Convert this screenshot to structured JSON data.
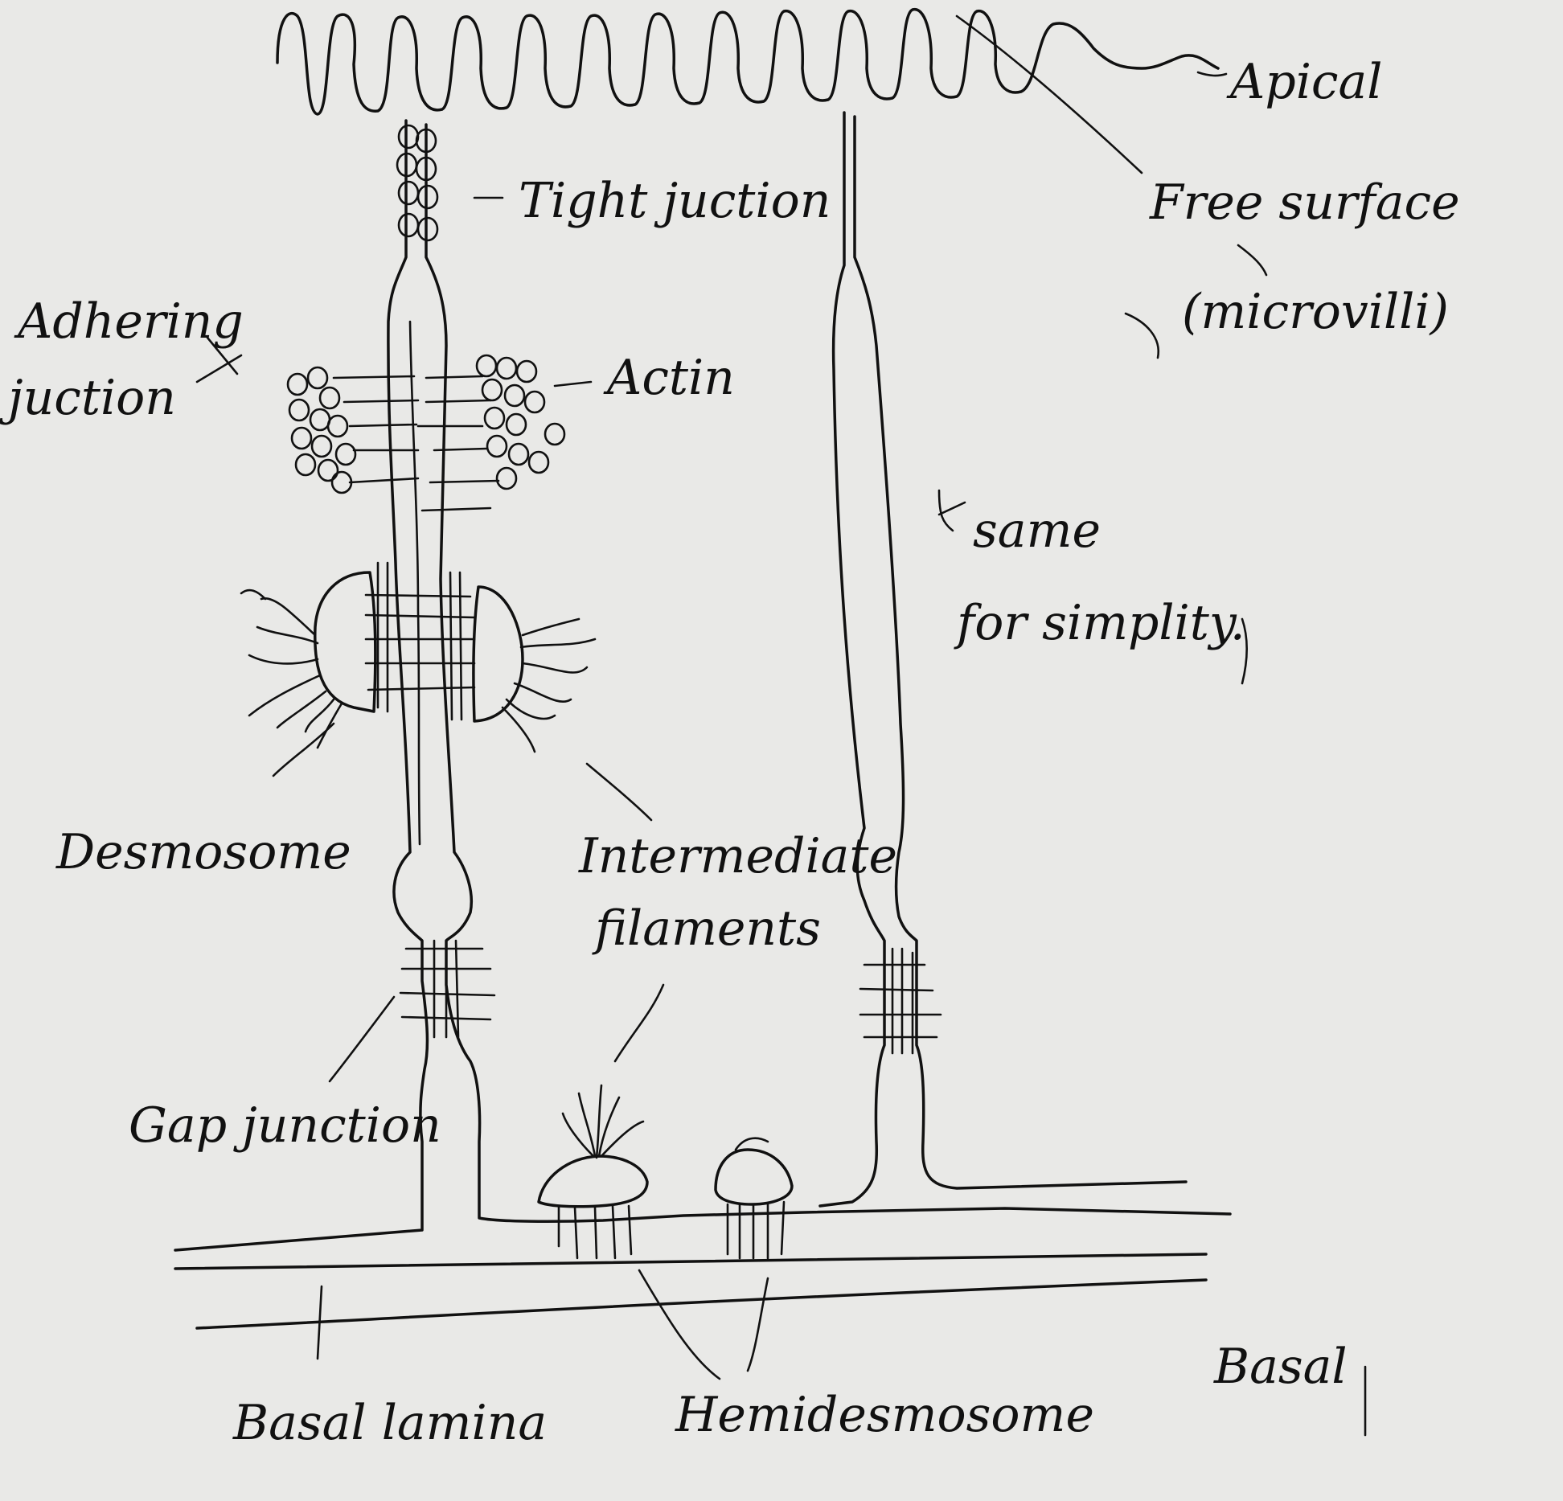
{
  "diagram": {
    "colors": {
      "paper": "#e9e9e7",
      "ink": "#111111"
    },
    "labels": {
      "apical": "Apical",
      "free_surface_line1": "Free surface",
      "free_surface_line2": "(microvilli)",
      "tight_junction": "Tight juction",
      "adhering_junction_line1": "Adhering",
      "adhering_junction_line2": "juction",
      "actin": "Actin",
      "same_for_simplicity_line1": "same",
      "same_for_simplicity_line2": "for simplity.",
      "desmosome": "Desmosome",
      "intermediate_filaments_line1": "Intermediate",
      "intermediate_filaments_line2": "filaments",
      "gap_junction": "Gap junction",
      "basal_lamina": "Basal lamina",
      "hemidesmosome": "Hemidesmosome",
      "basal": "Basal"
    }
  }
}
